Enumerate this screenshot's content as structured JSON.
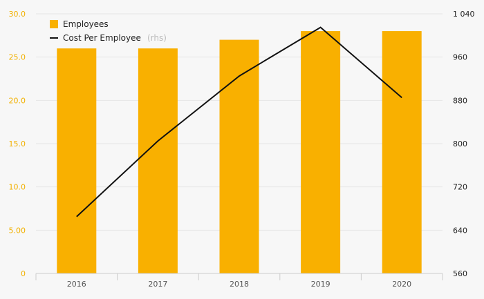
{
  "chart_data": {
    "type": "bar+line",
    "categories": [
      "2016",
      "2017",
      "2018",
      "2019",
      "2020"
    ],
    "series": [
      {
        "name": "Employees",
        "type": "bar",
        "axis": "left",
        "values": [
          26,
          26,
          27,
          28,
          28
        ]
      },
      {
        "name": "Cost Per Employee",
        "name_suffix": "(rhs)",
        "type": "line",
        "axis": "right",
        "values": [
          665,
          805,
          925,
          1015,
          885
        ]
      }
    ],
    "y_left": {
      "min": 0,
      "max": 30,
      "ticks": [
        0,
        5,
        10,
        15,
        20,
        25,
        30
      ],
      "tick_labels": [
        "0",
        "5.00",
        "10.0",
        "15.0",
        "20.0",
        "25.0",
        "30.0"
      ]
    },
    "y_right": {
      "min": 560,
      "max": 1040,
      "ticks": [
        560,
        640,
        720,
        800,
        880,
        960,
        1040
      ],
      "tick_labels": [
        "560",
        "640",
        "720",
        "800",
        "880",
        "960",
        "1 040"
      ]
    },
    "grid": true,
    "legend_position": "top-left",
    "colors": {
      "bar": "#f9b000",
      "line": "#111111",
      "grid": "#e6e6e6",
      "left_axis_text": "#f2b100"
    }
  }
}
